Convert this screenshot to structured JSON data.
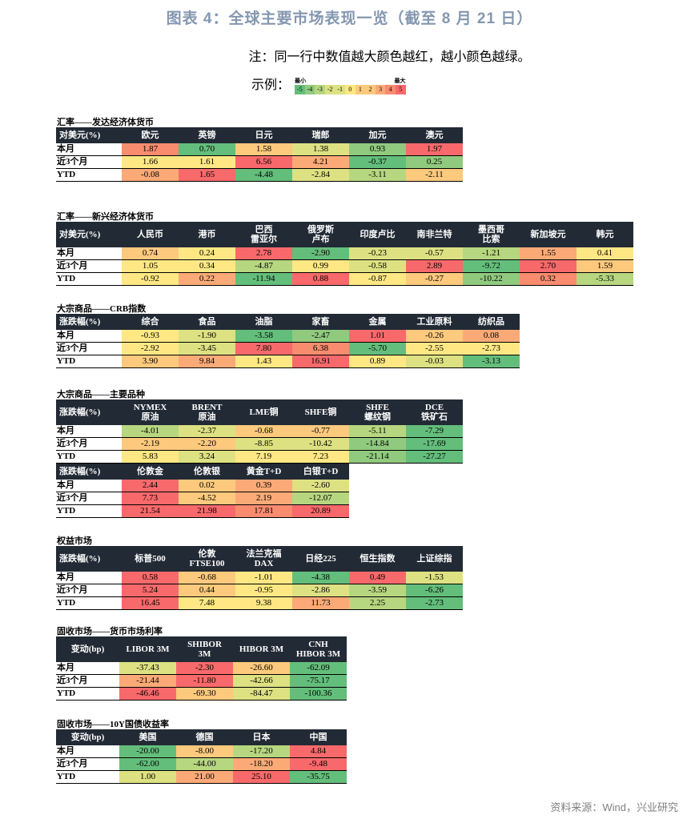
{
  "title": "图表 4：全球主要市场表现一览（截至 8 月 21 日）",
  "note": "注：同一行中数值越大颜色越红，越小颜色越绿。",
  "legend": {
    "label": "示例：",
    "min_label": "最小",
    "max_label": "最大",
    "steps": [
      {
        "v": "-5",
        "c": "G"
      },
      {
        "v": "-4",
        "c": "G8"
      },
      {
        "v": "-3",
        "c": "LG"
      },
      {
        "v": "-2",
        "c": "YG"
      },
      {
        "v": "-1",
        "c": "YG"
      },
      {
        "v": "0",
        "c": "Y"
      },
      {
        "v": "1",
        "c": "LO"
      },
      {
        "v": "2",
        "c": "LO"
      },
      {
        "v": "3",
        "c": "O"
      },
      {
        "v": "4",
        "c": "RO"
      },
      {
        "v": "5",
        "c": "R"
      }
    ]
  },
  "colors": {
    "R": "#f8696b",
    "RO": "#f98b6f",
    "O": "#fbaa77",
    "LO": "#fdc97d",
    "Y": "#ffe884",
    "YG": "#dde182",
    "LG": "#b7d680",
    "G8": "#90ca7e",
    "G": "#63be7b",
    "header": "#222a35",
    "title": "#8497b0"
  },
  "row_labels": [
    "本月",
    "近3个月",
    "YTD"
  ],
  "sections": [
    {
      "title": "汇率——发达经济体货币",
      "top": 146,
      "blocks": [
        {
          "corner": "对美元(%)",
          "two": false,
          "cols": [
            "欧元",
            "英镑",
            "日元",
            "瑞郎",
            "加元",
            "澳元"
          ],
          "rows": [
            [
              [
                "1.87",
                "RO"
              ],
              [
                "0.70",
                "G"
              ],
              [
                "1.58",
                "LO"
              ],
              [
                "1.38",
                "YG"
              ],
              [
                "0.93",
                "G8"
              ],
              [
                "1.97",
                "R"
              ]
            ],
            [
              [
                "1.66",
                "Y"
              ],
              [
                "1.61",
                "Y"
              ],
              [
                "6.56",
                "R"
              ],
              [
                "4.21",
                "O"
              ],
              [
                "-0.37",
                "G"
              ],
              [
                "0.25",
                "G8"
              ]
            ],
            [
              [
                "-0.08",
                "O"
              ],
              [
                "1.65",
                "R"
              ],
              [
                "-4.48",
                "G"
              ],
              [
                "-2.84",
                "YG"
              ],
              [
                "-3.11",
                "LG"
              ],
              [
                "-2.11",
                "LO"
              ]
            ]
          ]
        }
      ]
    },
    {
      "title": "汇率——新兴经济体货币",
      "top": 264,
      "blocks": [
        {
          "corner": "对美元(%)",
          "two": true,
          "cols": [
            "人民币",
            "港币",
            "巴西\n雷亚尔",
            "俄罗斯\n卢布",
            "印度卢比",
            "南非兰特",
            "墨西哥\n比索",
            "新加坡元",
            "韩元"
          ],
          "rows": [
            [
              [
                "0.74",
                "LO"
              ],
              [
                "0.24",
                "Y"
              ],
              [
                "2.78",
                "R"
              ],
              [
                "-2.90",
                "G"
              ],
              [
                "-0.23",
                "YG"
              ],
              [
                "-0.57",
                "YG"
              ],
              [
                "-1.21",
                "LG"
              ],
              [
                "1.55",
                "O"
              ],
              [
                "0.41",
                "Y"
              ]
            ],
            [
              [
                "1.05",
                "Y"
              ],
              [
                "0.34",
                "Y"
              ],
              [
                "-4.87",
                "LG"
              ],
              [
                "0.99",
                "Y"
              ],
              [
                "-0.58",
                "YG"
              ],
              [
                "2.89",
                "R"
              ],
              [
                "-9.72",
                "G"
              ],
              [
                "2.70",
                "R"
              ],
              [
                "1.59",
                "LO"
              ]
            ],
            [
              [
                "-0.92",
                "Y"
              ],
              [
                "0.22",
                "O"
              ],
              [
                "-11.94",
                "G"
              ],
              [
                "0.88",
                "R"
              ],
              [
                "-0.87",
                "Y"
              ],
              [
                "-0.27",
                "LO"
              ],
              [
                "-10.22",
                "G8"
              ],
              [
                "0.32",
                "RO"
              ],
              [
                "-5.33",
                "LG"
              ]
            ]
          ]
        }
      ]
    },
    {
      "title": "大宗商品——CRB指数",
      "top": 379,
      "blocks": [
        {
          "corner": "涨跌幅(%)",
          "two": false,
          "cols": [
            "综合",
            "食品",
            "油脂",
            "家畜",
            "金属",
            "工业原料",
            "纺织品"
          ],
          "rows": [
            [
              [
                "-0.93",
                "Y"
              ],
              [
                "-1.90",
                "YG"
              ],
              [
                "-3.58",
                "G"
              ],
              [
                "-2.47",
                "G8"
              ],
              [
                "1.01",
                "R"
              ],
              [
                "-0.26",
                "LO"
              ],
              [
                "0.08",
                "O"
              ]
            ],
            [
              [
                "-2.92",
                "Y"
              ],
              [
                "-3.45",
                "YG"
              ],
              [
                "7.80",
                "R"
              ],
              [
                "6.38",
                "RO"
              ],
              [
                "-5.70",
                "G"
              ],
              [
                "-2.55",
                "Y"
              ],
              [
                "-2.73",
                "Y"
              ]
            ],
            [
              [
                "3.90",
                "LO"
              ],
              [
                "9.84",
                "O"
              ],
              [
                "1.43",
                "Y"
              ],
              [
                "16.91",
                "R"
              ],
              [
                "0.89",
                "Y"
              ],
              [
                "-0.03",
                "YG"
              ],
              [
                "-3.13",
                "G"
              ]
            ]
          ]
        }
      ]
    },
    {
      "title": "大宗商品——主要品种",
      "top": 486,
      "blocks": [
        {
          "corner": "涨跌幅(%)",
          "two": true,
          "cols": [
            "NYMEX\n原油",
            "BRENT\n原油",
            "LME铜",
            "SHFE铜",
            "SHFE\n螺纹钢",
            "DCE\n铁矿石"
          ],
          "rows": [
            [
              [
                "-4.01",
                "LG"
              ],
              [
                "-2.37",
                "YG"
              ],
              [
                "-0.68",
                "LO"
              ],
              [
                "-0.77",
                "LO"
              ],
              [
                "-5.11",
                "LG"
              ],
              [
                "-7.29",
                "G"
              ]
            ],
            [
              [
                "-2.19",
                "LO"
              ],
              [
                "-2.20",
                "LO"
              ],
              [
                "-8.85",
                "YG"
              ],
              [
                "-10.42",
                "YG"
              ],
              [
                "-14.84",
                "G8"
              ],
              [
                "-17.69",
                "G"
              ]
            ],
            [
              [
                "5.83",
                "Y"
              ],
              [
                "3.24",
                "YG"
              ],
              [
                "7.19",
                "Y"
              ],
              [
                "7.23",
                "Y"
              ],
              [
                "-21.14",
                "G8"
              ],
              [
                "-27.27",
                "G"
              ]
            ]
          ]
        },
        {
          "corner": "涨跌幅(%)",
          "two": false,
          "cols": [
            "伦敦金",
            "伦敦银",
            "黄金T+D",
            "白银T+D"
          ],
          "rows": [
            [
              [
                "2.44",
                "R"
              ],
              [
                "0.02",
                "LO"
              ],
              [
                "0.39",
                "O"
              ],
              [
                "-2.60",
                "YG"
              ]
            ],
            [
              [
                "7.73",
                "R"
              ],
              [
                "-4.52",
                "LO"
              ],
              [
                "2.19",
                "O"
              ],
              [
                "-12.07",
                "LG"
              ]
            ],
            [
              [
                "21.54",
                "R"
              ],
              [
                "21.98",
                "R"
              ],
              [
                "17.81",
                "RO"
              ],
              [
                "20.89",
                "R"
              ]
            ]
          ]
        }
      ]
    },
    {
      "title": "权益市场",
      "top": 669,
      "blocks": [
        {
          "corner": "涨跌幅(%)",
          "two": true,
          "cols": [
            "标普500",
            "伦敦\nFTSE100",
            "法兰克福\nDAX",
            "日经225",
            "恒生指数",
            "上证综指"
          ],
          "rows": [
            [
              [
                "0.58",
                "R"
              ],
              [
                "-0.68",
                "LO"
              ],
              [
                "-1.01",
                "Y"
              ],
              [
                "-4.38",
                "G"
              ],
              [
                "0.49",
                "R"
              ],
              [
                "-1.53",
                "YG"
              ]
            ],
            [
              [
                "5.24",
                "R"
              ],
              [
                "0.44",
                "LO"
              ],
              [
                "-0.95",
                "Y"
              ],
              [
                "-2.86",
                "YG"
              ],
              [
                "-3.59",
                "LG"
              ],
              [
                "-6.26",
                "G"
              ]
            ],
            [
              [
                "16.45",
                "R"
              ],
              [
                "7.48",
                "Y"
              ],
              [
                "9.38",
                "Y"
              ],
              [
                "11.73",
                "O"
              ],
              [
                "2.25",
                "LG"
              ],
              [
                "-2.73",
                "G"
              ]
            ]
          ]
        }
      ]
    },
    {
      "title": "固收市场——货币市场利率",
      "top": 782,
      "blocks": [
        {
          "corner": "变动(bp)",
          "two": true,
          "center": true,
          "cols": [
            "LIBOR 3M",
            "SHIBOR\n3M",
            "HIBOR 3M",
            "CNH\nHIBOR 3M"
          ],
          "rows": [
            [
              [
                "-37.43",
                "YG"
              ],
              [
                "-2.30",
                "R"
              ],
              [
                "-26.60",
                "LO"
              ],
              [
                "-62.09",
                "G"
              ]
            ],
            [
              [
                "-21.44",
                "O"
              ],
              [
                "-11.80",
                "R"
              ],
              [
                "-42.66",
                "YG"
              ],
              [
                "-75.17",
                "G"
              ]
            ],
            [
              [
                "-46.46",
                "R"
              ],
              [
                "-69.30",
                "LO"
              ],
              [
                "-84.47",
                "YG"
              ],
              [
                "-100.36",
                "G"
              ]
            ]
          ]
        }
      ]
    },
    {
      "title": "固收市场——10Y国债收益率",
      "top": 898,
      "blocks": [
        {
          "corner": "变动(bp)",
          "two": false,
          "center": true,
          "cols": [
            "美国",
            "德国",
            "日本",
            "中国"
          ],
          "rows": [
            [
              [
                "-20.00",
                "G"
              ],
              [
                "-8.00",
                "LO"
              ],
              [
                "-17.20",
                "LG"
              ],
              [
                "4.84",
                "R"
              ]
            ],
            [
              [
                "-62.00",
                "G"
              ],
              [
                "-44.00",
                "LG"
              ],
              [
                "-18.20",
                "O"
              ],
              [
                "-9.48",
                "R"
              ]
            ],
            [
              [
                "1.00",
                "YG"
              ],
              [
                "21.00",
                "O"
              ],
              [
                "25.10",
                "R"
              ],
              [
                "-35.75",
                "G"
              ]
            ]
          ]
        }
      ]
    }
  ],
  "source": "资料来源：Wind，兴业研究"
}
